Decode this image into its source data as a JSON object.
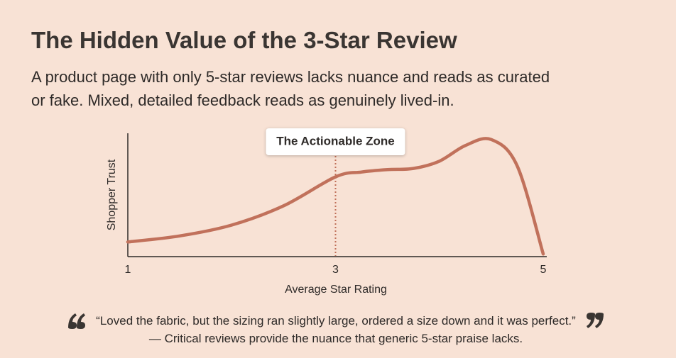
{
  "chart_data": {
    "type": "line",
    "title": "The Hidden Value of the 3-Star Review",
    "subtitle": "A product page with only 5-star reviews lacks nuance and reads as curated or fake. Mixed, detailed feedback reads as genuinely lived-in.",
    "x_label": "Average Star Rating",
    "y_label": "Shopper Trust",
    "x": [
      1,
      1.5,
      2,
      2.5,
      3,
      3.25,
      3.5,
      3.75,
      4,
      4.25,
      4.5,
      4.75,
      5
    ],
    "values": [
      11,
      16,
      25,
      41,
      65,
      69,
      71,
      72,
      78,
      91,
      96,
      74,
      1
    ],
    "color": "#c1715b",
    "xlim": [
      1,
      5
    ],
    "xticks": [
      1,
      3,
      5
    ],
    "ylim": [
      0,
      100
    ],
    "annotation": {
      "text": "The Actionable Zone",
      "x": 3
    },
    "quote": "“Loved the fabric, but the sizing ran slightly large, ordered a size down and it was perfect.” — Critical reviews provide the nuance that generic 5-star praise lacks."
  }
}
